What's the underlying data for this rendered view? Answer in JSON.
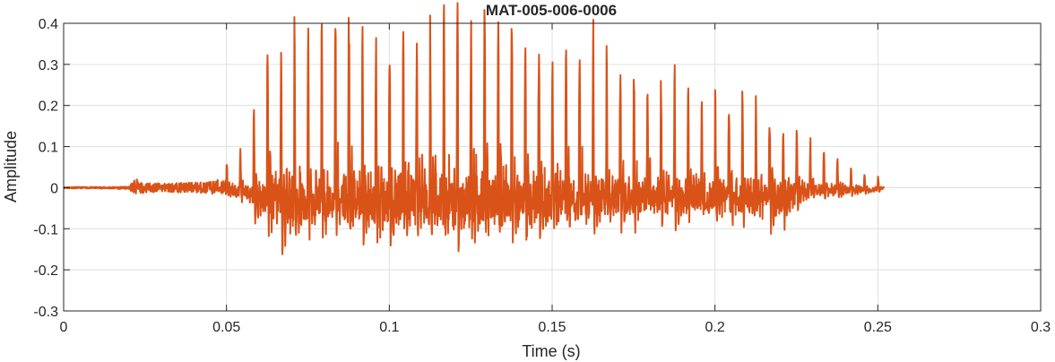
{
  "chart_data": {
    "type": "line",
    "title": "MAT-005-006-0006",
    "xlabel": "Time (s)",
    "ylabel": "Amplitude",
    "xlim": [
      0,
      0.3
    ],
    "ylim": [
      -0.3,
      0.4
    ],
    "x_ticks": [
      "0",
      "0.05",
      "0.1",
      "0.15",
      "0.2",
      "0.25",
      "0.3"
    ],
    "y_ticks": [
      "-0.3",
      "-0.2",
      "-0.1",
      "0",
      "0.1",
      "0.2",
      "0.3",
      "0.4"
    ],
    "grid": true,
    "series": [
      {
        "color": "#D95319",
        "x": [
          0,
          0.01,
          0.02,
          0.022,
          0.023,
          0.03,
          0.04,
          0.045,
          0.05,
          0.054,
          0.056,
          0.06,
          0.063,
          0.066,
          0.07,
          0.075,
          0.082,
          0.09,
          0.1,
          0.11,
          0.12,
          0.128,
          0.135,
          0.14,
          0.15,
          0.16,
          0.17,
          0.18,
          0.19,
          0.2,
          0.21,
          0.22,
          0.23,
          0.24,
          0.245,
          0.25,
          0.252
        ],
        "envelope_max": [
          0.003,
          0.003,
          0.004,
          0.048,
          0.02,
          0.018,
          0.022,
          0.025,
          0.045,
          0.07,
          0.08,
          0.19,
          0.3,
          0.27,
          0.32,
          0.3,
          0.34,
          0.34,
          0.31,
          0.34,
          0.37,
          0.37,
          0.37,
          0.33,
          0.28,
          0.29,
          0.26,
          0.23,
          0.2,
          0.17,
          0.17,
          0.13,
          0.09,
          0.05,
          0.025,
          0.02,
          0.01
        ],
        "envelope_min": [
          -0.003,
          -0.004,
          -0.006,
          -0.03,
          -0.022,
          -0.018,
          -0.02,
          -0.025,
          -0.03,
          -0.06,
          -0.07,
          -0.14,
          -0.18,
          -0.24,
          -0.26,
          -0.2,
          -0.21,
          -0.2,
          -0.22,
          -0.22,
          -0.24,
          -0.23,
          -0.2,
          -0.21,
          -0.2,
          -0.18,
          -0.16,
          -0.15,
          -0.15,
          -0.15,
          -0.16,
          -0.16,
          -0.05,
          -0.04,
          -0.03,
          -0.02,
          -0.01
        ]
      }
    ]
  }
}
